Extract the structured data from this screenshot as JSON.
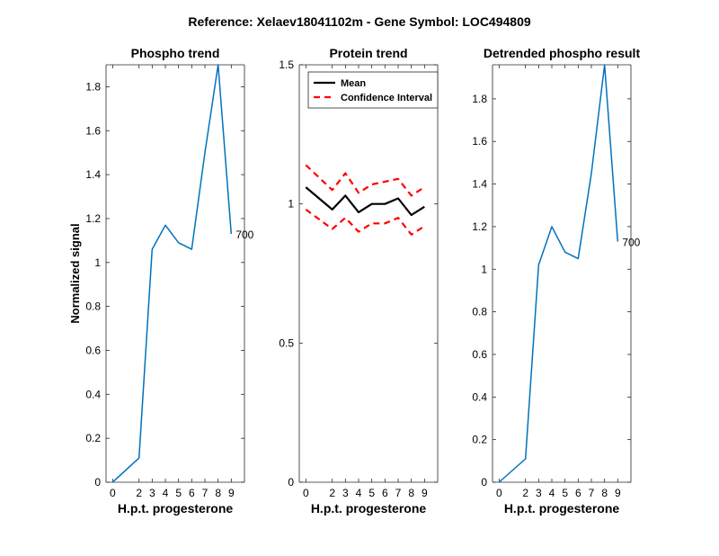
{
  "figure": {
    "suptitle": "Reference:  Xelaev18041102m - Gene Symbol:  LOC494809",
    "colors": {
      "series": "#0072bd",
      "mean": "#000000",
      "ci": "#ff0000"
    }
  },
  "chart_data": [
    {
      "type": "line",
      "title": "Phospho trend",
      "xlabel": "H.p.t. progesterone",
      "ylabel": "Normalized signal",
      "xlim": [
        -0.5,
        10
      ],
      "ylim": [
        0,
        1.9
      ],
      "xticks": [
        0,
        2,
        3,
        4,
        5,
        6,
        7,
        8,
        9
      ],
      "yticks": [
        0,
        0.2,
        0.4,
        0.6,
        0.8,
        1,
        1.2,
        1.4,
        1.6,
        1.8
      ],
      "yticklabels": [
        "0",
        "0.2",
        "0.4",
        "0.6",
        "0.8",
        "1",
        "1.2",
        "1.4",
        "1.6",
        "1.8"
      ],
      "series": [
        {
          "x": [
            0,
            2,
            3,
            4,
            5,
            6,
            7,
            8,
            9
          ],
          "values": [
            0,
            0.11,
            1.06,
            1.17,
            1.09,
            1.06,
            1.5,
            1.9,
            1.13
          ],
          "color": "#0072bd",
          "style": "solid"
        }
      ],
      "annotations": [
        {
          "text": "700",
          "x": 9,
          "y": 1.13
        }
      ]
    },
    {
      "type": "line",
      "title": "Protein trend",
      "xlabel": "H.p.t. progesterone",
      "ylabel": "",
      "xlim": [
        -0.5,
        10
      ],
      "ylim": [
        0,
        1.5
      ],
      "xticks": [
        0,
        2,
        3,
        4,
        5,
        6,
        7,
        8,
        9
      ],
      "yticks": [
        0,
        0.5,
        1,
        1.5
      ],
      "yticklabels": [
        "0",
        "0.5",
        "1",
        "1.5"
      ],
      "legend": {
        "position": "top-left"
      },
      "series": [
        {
          "name": "Mean",
          "x": [
            0,
            2,
            3,
            4,
            5,
            6,
            7,
            8,
            9
          ],
          "values": [
            1.06,
            0.98,
            1.03,
            0.97,
            1.0,
            1.0,
            1.02,
            0.96,
            0.99
          ],
          "color": "#000000",
          "style": "solid"
        },
        {
          "name": "Confidence Interval",
          "x": [
            0,
            2,
            3,
            4,
            5,
            6,
            7,
            8,
            9
          ],
          "values": [
            1.14,
            1.05,
            1.11,
            1.04,
            1.07,
            1.08,
            1.09,
            1.03,
            1.06
          ],
          "color": "#ff0000",
          "style": "dashed"
        },
        {
          "x": [
            0,
            2,
            3,
            4,
            5,
            6,
            7,
            8,
            9
          ],
          "values": [
            0.98,
            0.91,
            0.95,
            0.9,
            0.93,
            0.93,
            0.95,
            0.89,
            0.92
          ],
          "color": "#ff0000",
          "style": "dashed"
        }
      ]
    },
    {
      "type": "line",
      "title": "Detrended phospho result",
      "xlabel": "H.p.t. progesterone",
      "ylabel": "",
      "xlim": [
        -0.5,
        10
      ],
      "ylim": [
        0,
        1.96
      ],
      "xticks": [
        0,
        2,
        3,
        4,
        5,
        6,
        7,
        8,
        9
      ],
      "yticks": [
        0,
        0.2,
        0.4,
        0.6,
        0.8,
        1,
        1.2,
        1.4,
        1.6,
        1.8
      ],
      "yticklabels": [
        "0",
        "0.2",
        "0.4",
        "0.6",
        "0.8",
        "1",
        "1.2",
        "1.4",
        "1.6",
        "1.8"
      ],
      "series": [
        {
          "x": [
            0,
            2,
            3,
            4,
            5,
            6,
            7,
            8,
            9
          ],
          "values": [
            0,
            0.11,
            1.02,
            1.2,
            1.08,
            1.05,
            1.45,
            1.96,
            1.13
          ],
          "color": "#0072bd",
          "style": "solid"
        }
      ],
      "annotations": [
        {
          "text": "700",
          "x": 9,
          "y": 1.13
        }
      ]
    }
  ]
}
